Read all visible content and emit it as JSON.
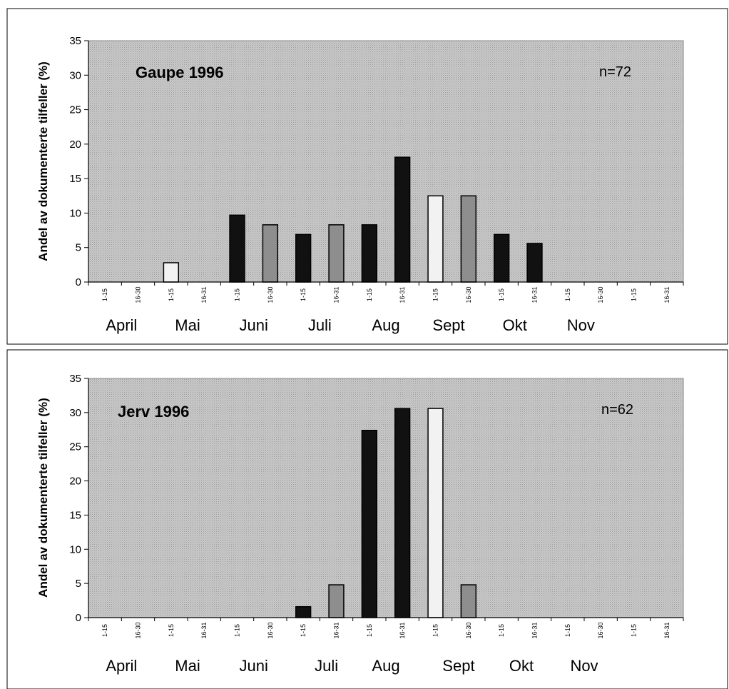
{
  "colors": {
    "plot_bg": "#c4c4c4",
    "bar_dark": "#111111",
    "bar_mid": "#8e8e8e",
    "bar_light": "#f2f2f2",
    "frame": "#000000"
  },
  "chart_data": [
    {
      "type": "bar",
      "title": "Gaupe 1996",
      "n_label": "n=72",
      "ylabel": "Andel av dokumenterte tilfeller (%)",
      "xlabel": "",
      "ylim": [
        0,
        35
      ],
      "yticks": [
        "0",
        "5",
        "10",
        "15",
        "20",
        "25",
        "30",
        "35"
      ],
      "categories": [
        "1-15",
        "16-30",
        "1-15",
        "16-31",
        "1-15",
        "16-30",
        "1-15",
        "16-31",
        "1-15",
        "16-31",
        "1-15",
        "16-30",
        "1-15",
        "16-31",
        "1-15",
        "16-30",
        "1-15",
        "16-31"
      ],
      "months": [
        "April",
        "Mai",
        "Juni",
        "Juli",
        "Aug",
        "Sept",
        "Okt",
        "Nov"
      ],
      "month_anchor_index": [
        0.5,
        2.5,
        4.5,
        6.5,
        8.5,
        10.4,
        12.4,
        14.4
      ],
      "values": [
        0,
        0,
        2.8,
        0,
        9.7,
        8.3,
        6.9,
        8.3,
        8.3,
        18.1,
        12.5,
        12.5,
        6.9,
        5.6,
        0,
        0,
        0,
        0
      ],
      "shades": [
        "dark",
        "mid",
        "light",
        "mid",
        "dark",
        "mid",
        "dark",
        "mid",
        "dark",
        "dark",
        "light",
        "mid",
        "dark",
        "dark",
        "dark",
        "mid",
        "dark",
        "mid"
      ],
      "grid": false,
      "legend": "none"
    },
    {
      "type": "bar",
      "title": "Jerv 1996",
      "n_label": "n=62",
      "ylabel": "Andel av dokumenterte tilfeller (%)",
      "xlabel": "",
      "ylim": [
        0,
        35
      ],
      "yticks": [
        "0",
        "5",
        "10",
        "15",
        "20",
        "25",
        "30",
        "35"
      ],
      "categories": [
        "1-15",
        "16-30",
        "1-15",
        "16-31",
        "1-15",
        "16-30",
        "1-15",
        "16-31",
        "1-15",
        "16-31",
        "1-15",
        "16-30",
        "1-15",
        "16-31",
        "1-15",
        "16-30",
        "1-15",
        "16-31"
      ],
      "months": [
        "April",
        "Mai",
        "Juni",
        "Juli",
        "Aug",
        "Sept",
        "Okt",
        "Nov"
      ],
      "month_anchor_index": [
        0.5,
        2.5,
        4.5,
        6.7,
        8.5,
        10.7,
        12.6,
        14.5
      ],
      "values": [
        0,
        0,
        0,
        0,
        0,
        0,
        1.6,
        4.8,
        27.4,
        30.6,
        30.6,
        4.8,
        0,
        0,
        0,
        0,
        0,
        0
      ],
      "shades": [
        "dark",
        "mid",
        "dark",
        "mid",
        "dark",
        "mid",
        "dark",
        "mid",
        "dark",
        "dark",
        "light",
        "mid",
        "dark",
        "mid",
        "dark",
        "mid",
        "dark",
        "mid"
      ],
      "grid": false,
      "legend": "none"
    }
  ]
}
